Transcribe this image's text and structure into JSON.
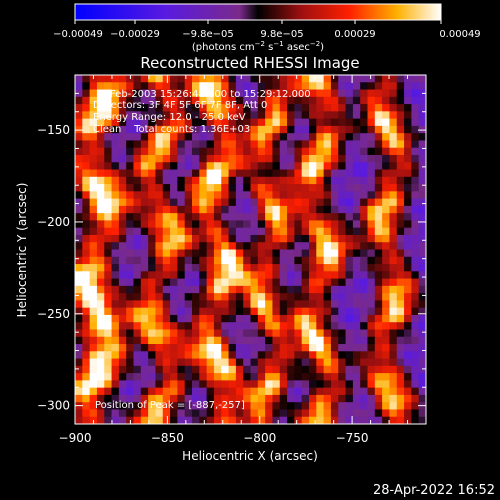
{
  "chart_data": {
    "type": "heatmap",
    "title": "Reconstructed RHESSI Image",
    "xlabel": "Heliocentric X (arcsec)",
    "ylabel": "Heliocentric Y (arcsec)",
    "xlim": [
      -900,
      -710
    ],
    "ylim": [
      -310,
      -120
    ],
    "x_ticks": [
      -900,
      -850,
      -800,
      -750
    ],
    "y_ticks": [
      -150,
      -200,
      -250,
      -300
    ],
    "x_tick_labels": [
      "−900",
      "−850",
      "−800",
      "−750"
    ],
    "y_tick_labels": [
      "−150",
      "−200",
      "−250",
      "−300"
    ],
    "annotations": [
      "3-Feb-2003 15:26:48.000 to 15:29:12.000",
      "Detectors: 3F 4F 5F 6F 7F 8F, Att 0",
      "Energy Range: 12.0 - 25.0 keV",
      "Clean    Total counts: 1.36E+03"
    ],
    "peak_label": "Position of Peak = [-887,-257]",
    "peak_position": [
      -887,
      -257
    ],
    "colorbar": {
      "range": [
        -0.00049,
        0.00049
      ],
      "tick_labels": [
        "−0.00049",
        "−0.00029",
        "−9.8e−05",
        "9.8e−05",
        "0.00029",
        "0.00049"
      ],
      "units_text": "(photons cm",
      "units_sup1": "−2",
      "units_mid": " s",
      "units_sup2": "−1",
      "units_mid2": " asec",
      "units_sup3": "−2",
      "units_end": ")"
    },
    "ridges": [
      {
        "x": -888,
        "amp": 1.0,
        "width": 9,
        "wobble": 6,
        "phase": 0.3
      },
      {
        "x": -854,
        "amp": 0.85,
        "width": 8,
        "wobble": 7,
        "phase": 1.7
      },
      {
        "x": -823,
        "amp": 0.95,
        "width": 8,
        "wobble": 6,
        "phase": 2.9
      },
      {
        "x": -795,
        "amp": 0.8,
        "width": 7,
        "wobble": 5,
        "phase": 0.9
      },
      {
        "x": -768,
        "amp": 0.9,
        "width": 8,
        "wobble": 6,
        "phase": 2.2
      },
      {
        "x": -730,
        "amp": 0.85,
        "width": 8,
        "wobble": 5,
        "phase": 4.1
      }
    ]
  },
  "footer": {
    "timestamp": "28-Apr-2022 16:52"
  }
}
